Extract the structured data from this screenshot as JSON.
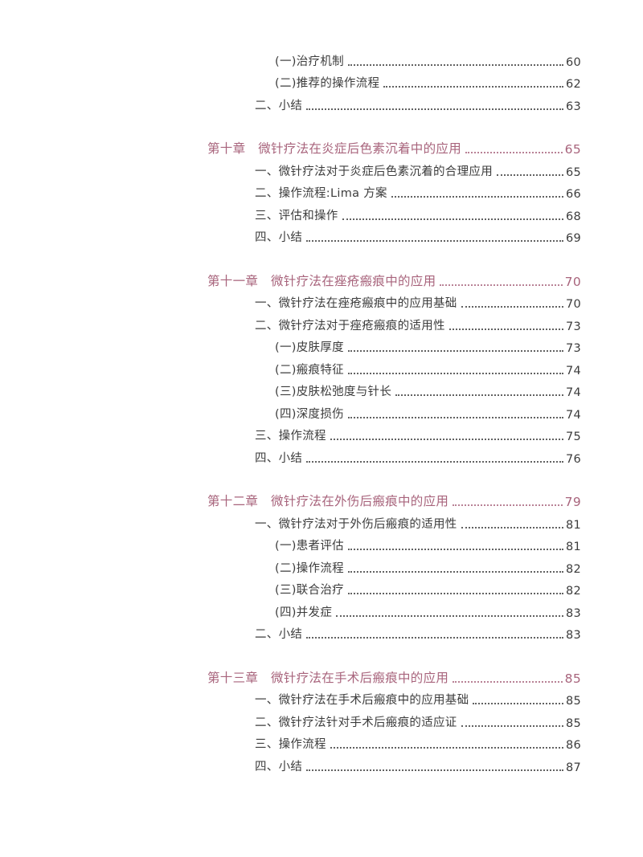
{
  "colors": {
    "chapter_accent": "#a8647c",
    "body_text": "#3c3c3c",
    "page_background": "#ffffff"
  },
  "toc": {
    "entries": [
      {
        "level": 2,
        "text": "(一)治疗机制",
        "page": "60"
      },
      {
        "level": 2,
        "text": "(二)推荐的操作流程",
        "page": "62"
      },
      {
        "level": 1,
        "text": "二、小结",
        "page": "63"
      },
      {
        "level": 0,
        "text": "第十章　微针疗法在炎症后色素沉着中的应用",
        "page": "65"
      },
      {
        "level": 1,
        "text": "一、微针疗法对于炎症后色素沉着的合理应用",
        "page": "65"
      },
      {
        "level": 1,
        "text": "二、操作流程:Lima 方案",
        "page": "66"
      },
      {
        "level": 1,
        "text": "三、评估和操作",
        "page": "68"
      },
      {
        "level": 1,
        "text": "四、小结",
        "page": "69"
      },
      {
        "level": 0,
        "text": "第十一章　微针疗法在痤疮瘢痕中的应用",
        "page": "70"
      },
      {
        "level": 1,
        "text": "一、微针疗法在痤疮瘢痕中的应用基础",
        "page": "70"
      },
      {
        "level": 1,
        "text": "二、微针疗法对于痤疮瘢痕的适用性",
        "page": "73"
      },
      {
        "level": 2,
        "text": "(一)皮肤厚度",
        "page": "73"
      },
      {
        "level": 2,
        "text": "(二)瘢痕特征",
        "page": "74"
      },
      {
        "level": 2,
        "text": "(三)皮肤松弛度与针长",
        "page": "74"
      },
      {
        "level": 2,
        "text": "(四)深度损伤",
        "page": "74"
      },
      {
        "level": 1,
        "text": "三、操作流程",
        "page": "75"
      },
      {
        "level": 1,
        "text": "四、小结",
        "page": "76"
      },
      {
        "level": 0,
        "text": "第十二章　微针疗法在外伤后瘢痕中的应用",
        "page": "79"
      },
      {
        "level": 1,
        "text": "一、微针疗法对于外伤后瘢痕的适用性",
        "page": "81"
      },
      {
        "level": 2,
        "text": "(一)患者评估",
        "page": "81"
      },
      {
        "level": 2,
        "text": "(二)操作流程",
        "page": "82"
      },
      {
        "level": 2,
        "text": "(三)联合治疗",
        "page": "82"
      },
      {
        "level": 2,
        "text": "(四)并发症",
        "page": "83"
      },
      {
        "level": 1,
        "text": "二、小结",
        "page": "83"
      },
      {
        "level": 0,
        "text": "第十三章　微针疗法在手术后瘢痕中的应用",
        "page": "85"
      },
      {
        "level": 1,
        "text": "一、微针疗法在手术后瘢痕中的应用基础",
        "page": "85"
      },
      {
        "level": 1,
        "text": "二、微针疗法针对手术后瘢痕的适应证",
        "page": "85"
      },
      {
        "level": 1,
        "text": "三、操作流程",
        "page": "86"
      },
      {
        "level": 1,
        "text": "四、小结",
        "page": "87"
      }
    ]
  }
}
